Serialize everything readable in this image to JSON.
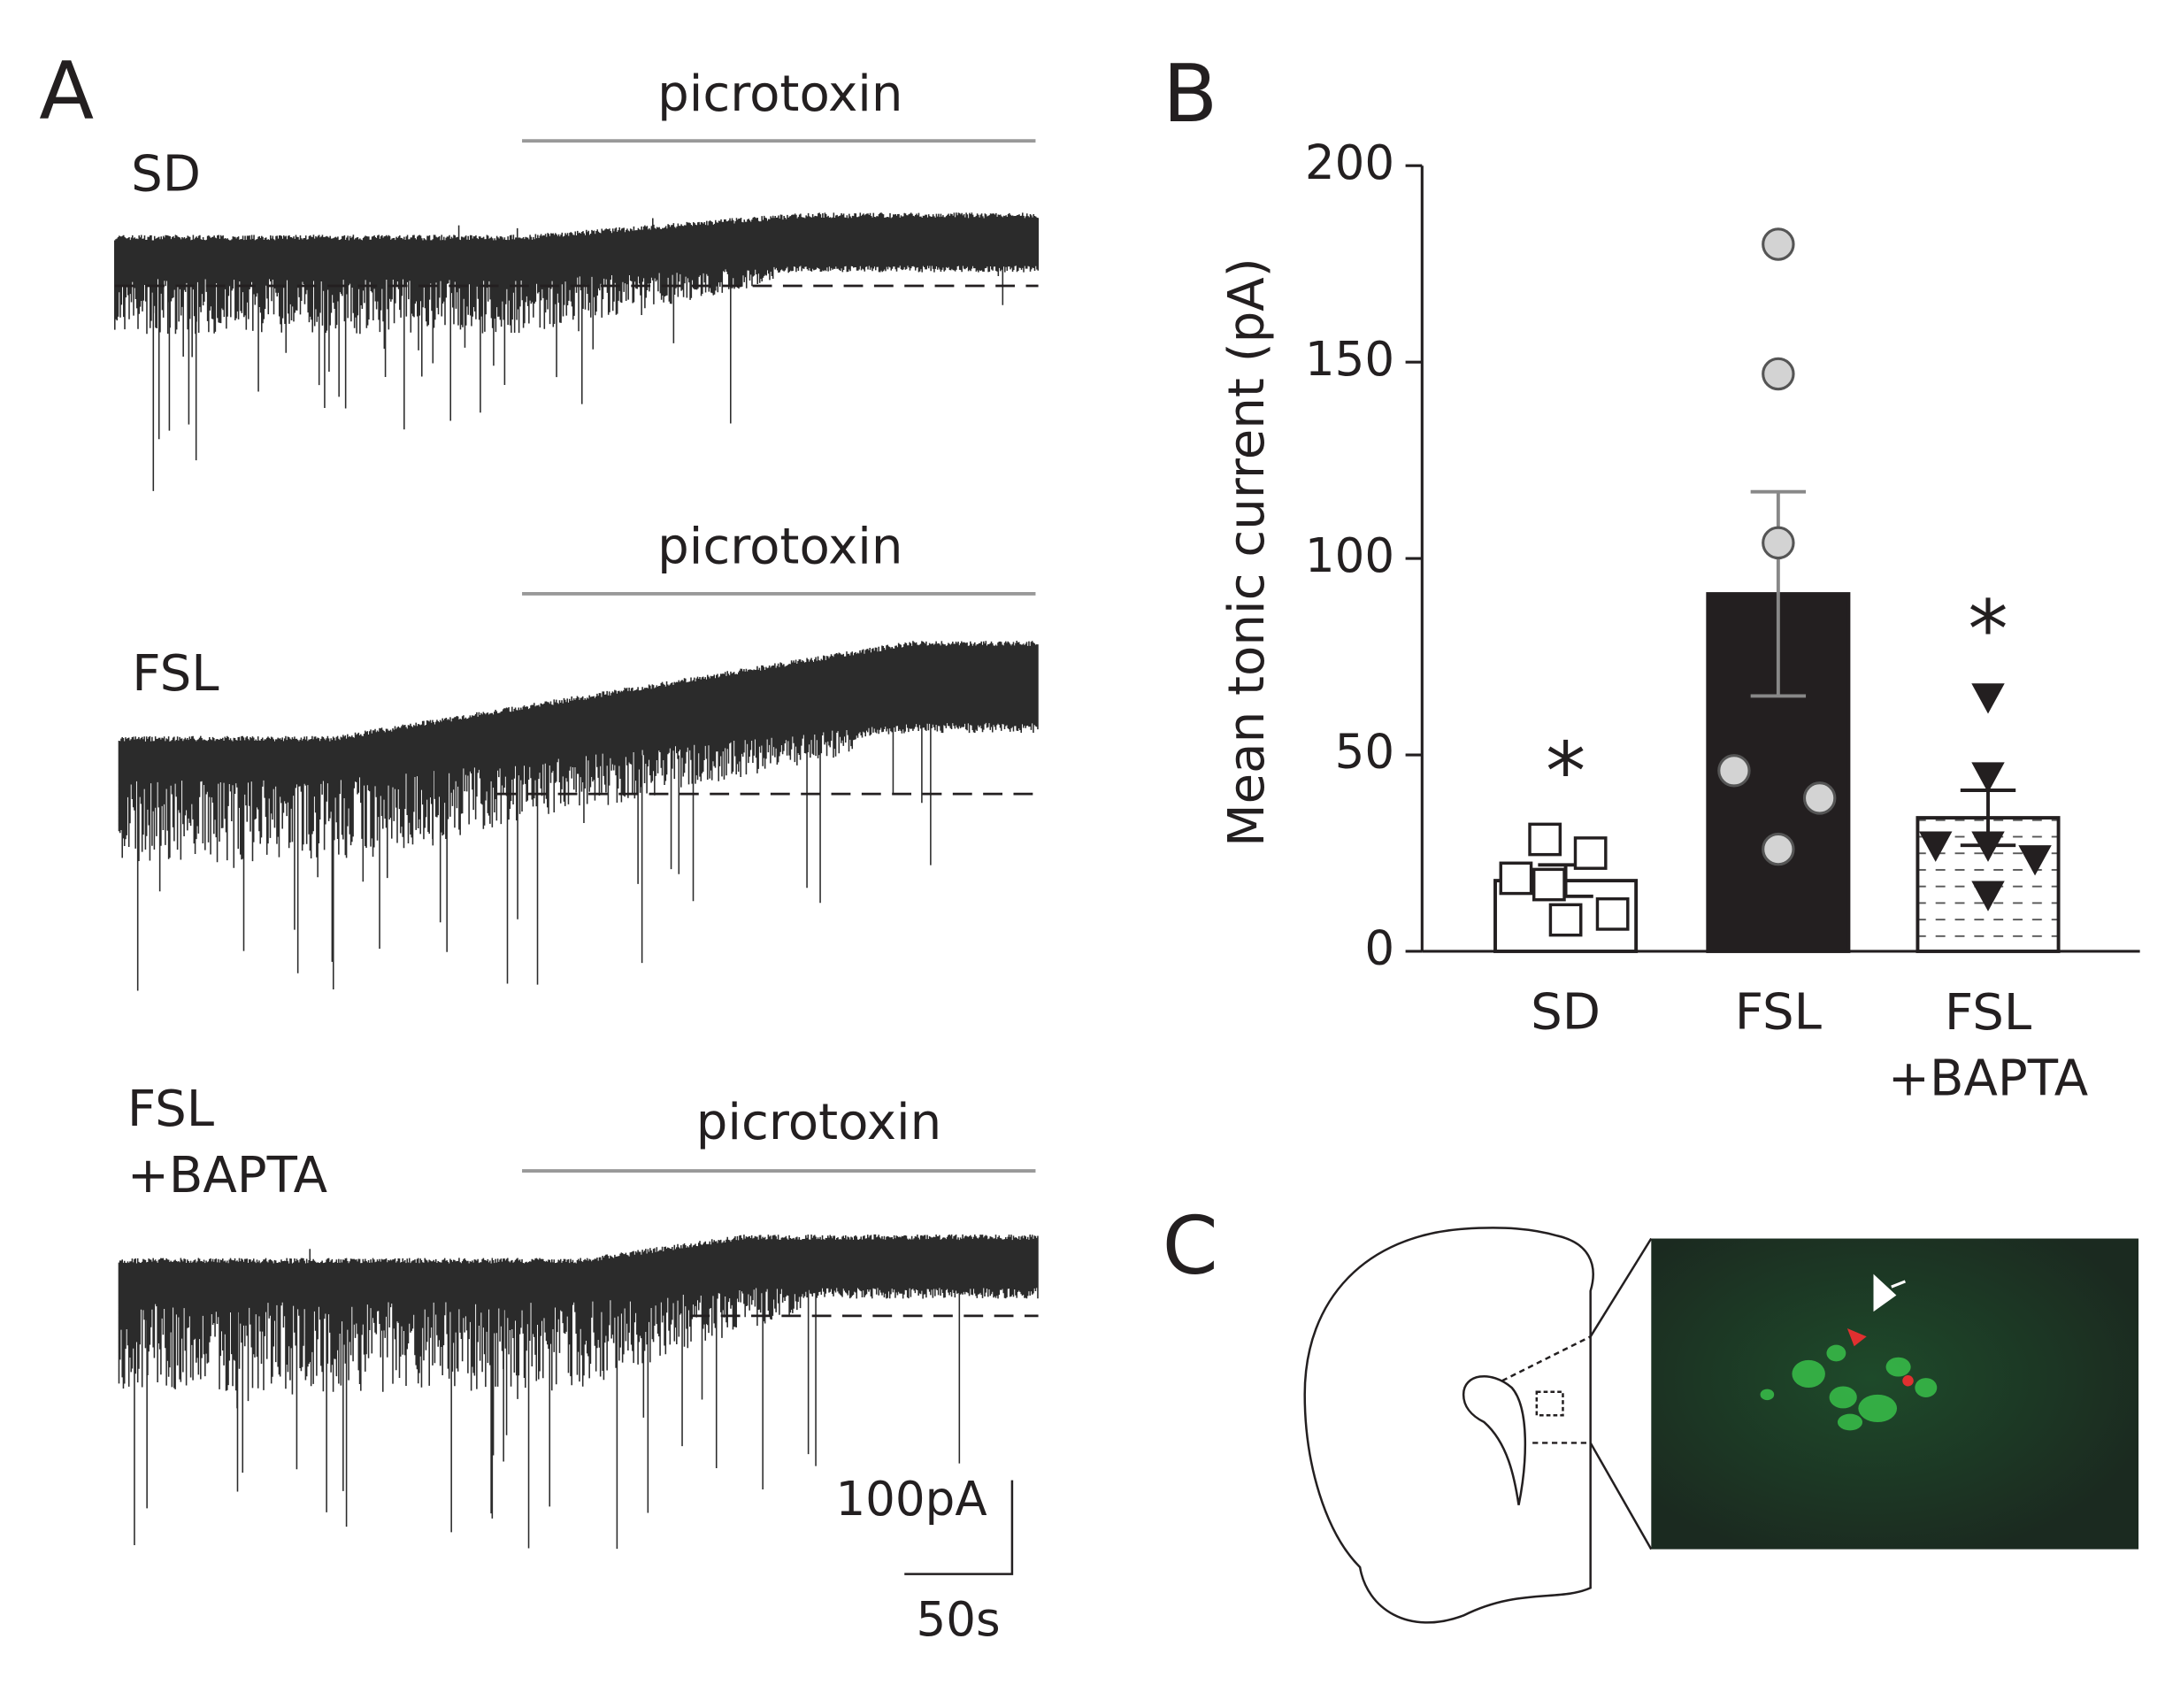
{
  "panel_a": {
    "label": "A",
    "traces": [
      {
        "name": "SD",
        "drug": "picrotoxin"
      },
      {
        "name": "FSL",
        "drug": "picrotoxin"
      },
      {
        "name": "FSL +BAPTA",
        "drug": "picrotoxin"
      }
    ],
    "scale_bar": {
      "y": "100pA",
      "x": "50s"
    }
  },
  "chart_data": {
    "type": "bar",
    "label": "B",
    "ylabel": "Mean tonic current (pA)",
    "categories": [
      "SD",
      "FSL",
      "FSL +BAPTA"
    ],
    "values": [
      18,
      91,
      34
    ],
    "errors": [
      4,
      26,
      7
    ],
    "bar_colors": [
      "#ffffff",
      "#231f20",
      "#ffffff"
    ],
    "hatch": [
      false,
      false,
      true
    ],
    "point_colors": [
      "#ffffff",
      "#d3d3d3",
      "#231f20"
    ],
    "points": [
      [
        28.5,
        25,
        18.6,
        17,
        9.5,
        8
      ],
      [
        180,
        147,
        104,
        46,
        39,
        26
      ],
      [
        64.7,
        44.6,
        27,
        27,
        23.5,
        14.4
      ]
    ],
    "significance": [
      "*",
      null,
      "*"
    ],
    "ylim": [
      0,
      200
    ],
    "yticks": [
      0,
      50,
      100,
      150,
      200
    ]
  },
  "panel_c": {
    "label": "C"
  }
}
